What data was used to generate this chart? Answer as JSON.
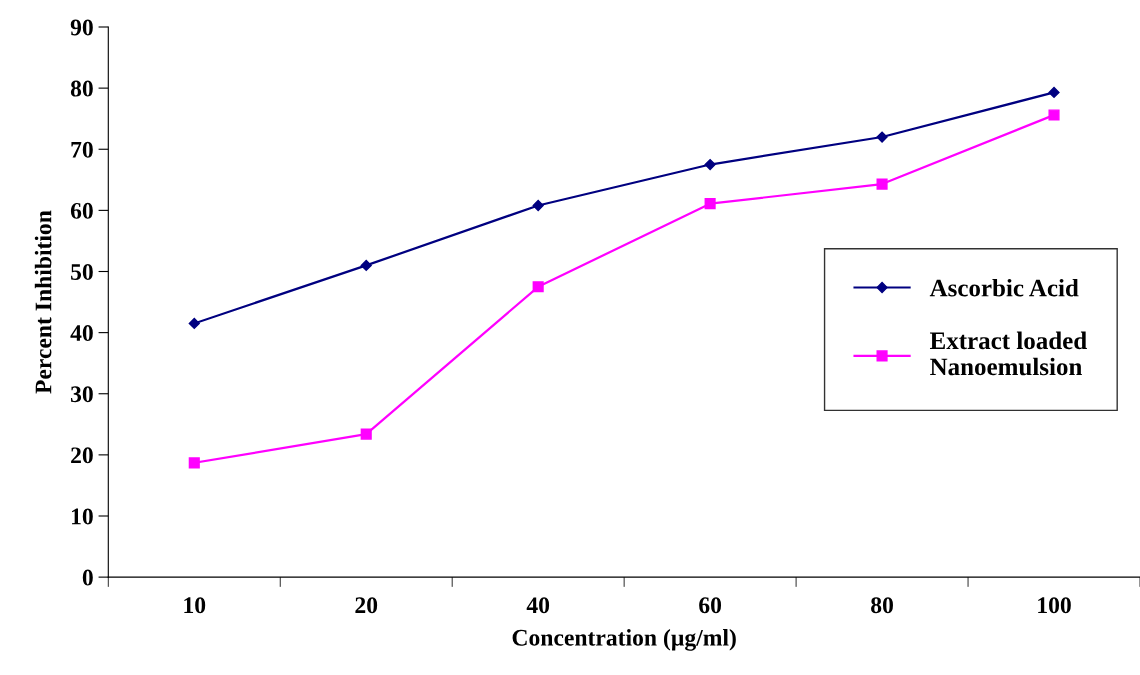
{
  "chart_data": {
    "type": "line",
    "xlabel": "Concentration (µg/ml)",
    "ylabel": "Percent Inhibition",
    "categories": [
      "10",
      "20",
      "40",
      "60",
      "80",
      "100"
    ],
    "series": [
      {
        "name": "Ascorbic Acid",
        "color": "#000080",
        "marker": "diamond",
        "values": [
          41.5,
          51.0,
          60.8,
          67.5,
          72.0,
          79.3
        ]
      },
      {
        "name": "Extract loaded\nNanoemulsion",
        "color": "#ff00ff",
        "marker": "square",
        "values": [
          18.7,
          23.4,
          47.5,
          61.1,
          64.3,
          75.6
        ]
      }
    ],
    "ylim": [
      0,
      90
    ],
    "yticks": [
      0,
      10,
      20,
      30,
      40,
      50,
      60,
      70,
      80,
      90
    ],
    "grid": false,
    "legend": "right",
    "line_style": "solid"
  }
}
